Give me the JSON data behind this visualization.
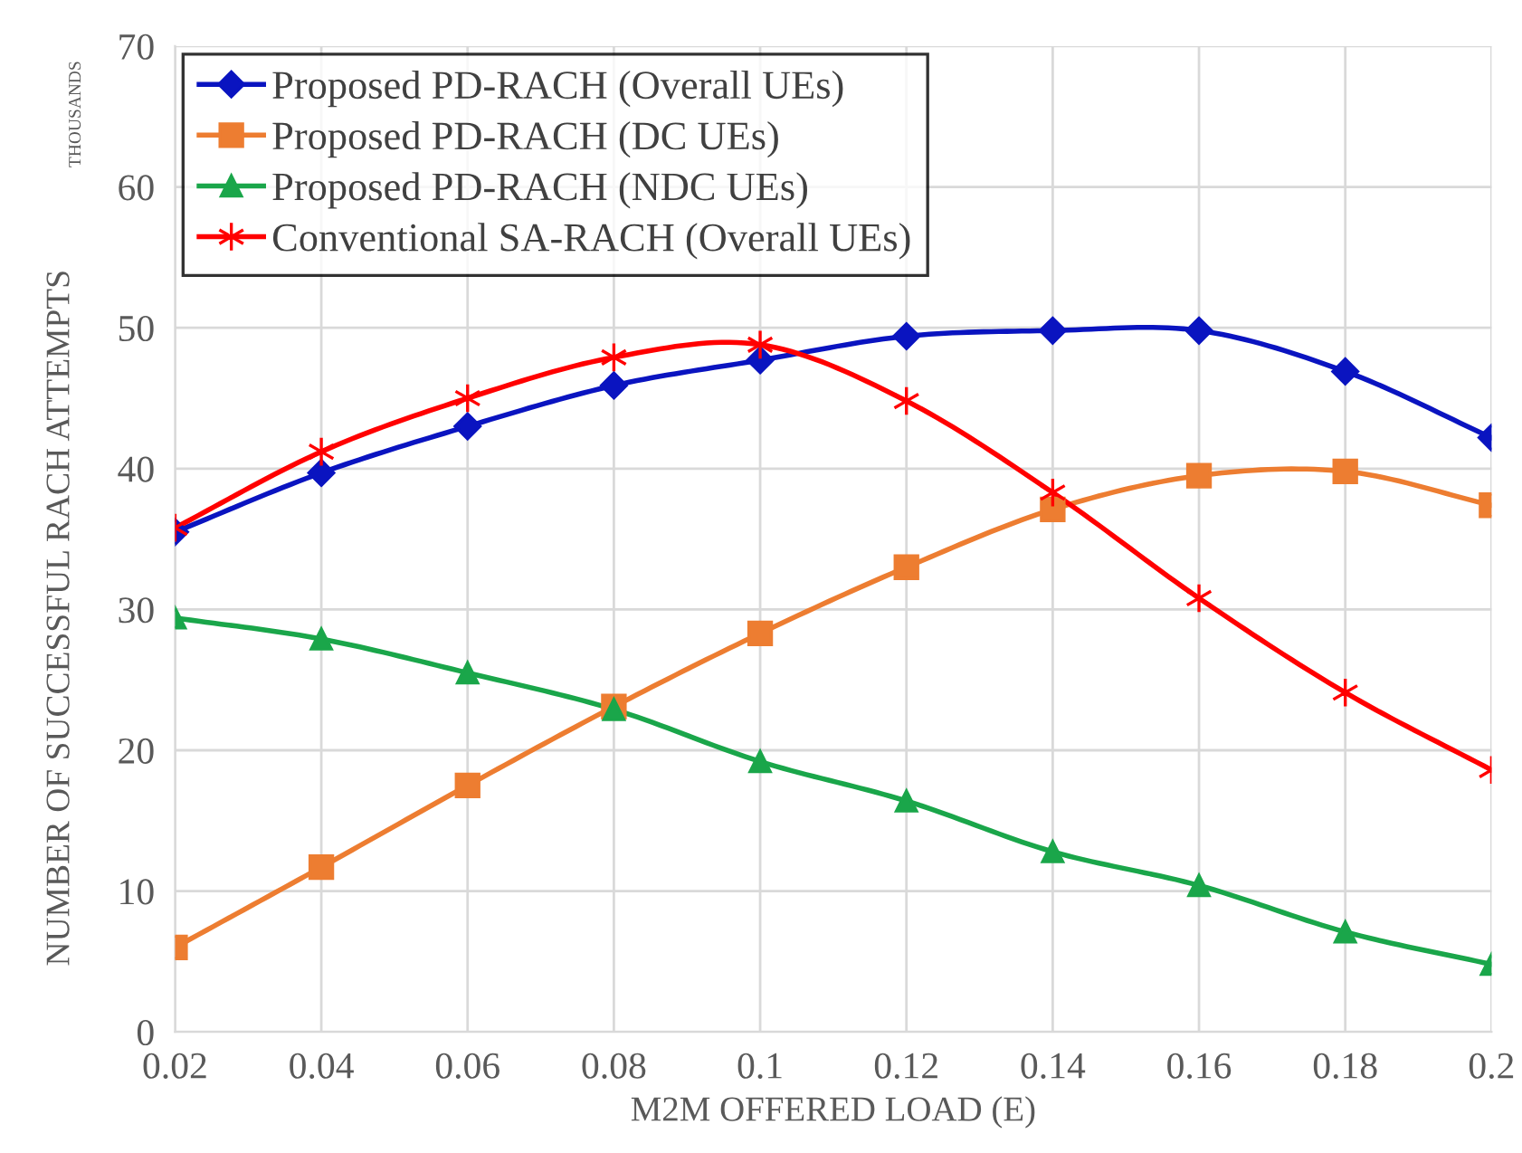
{
  "chart_data": {
    "type": "line",
    "xlabel": "M2M OFFERED LOAD (E)",
    "ylabel": "NUMBER OF SUCCESSFUL RACH ATTEMPTS",
    "annotations": [
      "THOUSANDS"
    ],
    "x": [
      0.02,
      0.04,
      0.06,
      0.08,
      0.1,
      0.12,
      0.14,
      0.16,
      0.18,
      0.2
    ],
    "xlim": [
      0.02,
      0.2
    ],
    "xticks": [
      0.02,
      0.04,
      0.06,
      0.08,
      0.1,
      0.12,
      0.14,
      0.16,
      0.18,
      0.2
    ],
    "ylim": [
      0,
      70
    ],
    "yticks": [
      0,
      10,
      20,
      30,
      40,
      50,
      60,
      70
    ],
    "grid": true,
    "legend": "top left",
    "line_style": "solid",
    "series": [
      {
        "name": "Proposed PD-RACH (Overall UEs)",
        "color": "#0a14c0",
        "marker": "diamond",
        "values": [
          35.5,
          39.7,
          43,
          45.9,
          47.7,
          49.4,
          49.8,
          49.8,
          46.9,
          42.2
        ]
      },
      {
        "name": "Proposed PD-RACH (DC UEs)",
        "color": "#ed7d31",
        "marker": "square",
        "values": [
          6,
          11.7,
          17.5,
          23.1,
          28.3,
          33,
          37.1,
          39.5,
          39.8,
          37.4
        ]
      },
      {
        "name": "Proposed PD-RACH (NDC UEs)",
        "color": "#1aa64a",
        "marker": "triangle",
        "values": [
          29.4,
          27.9,
          25.5,
          22.9,
          19.2,
          16.4,
          12.8,
          10.4,
          7.1,
          4.8
        ]
      },
      {
        "name": "Conventional SA-RACH (Overall UEs)",
        "color": "#ff0000",
        "marker": "cross",
        "values": [
          35.8,
          41.2,
          45,
          47.9,
          48.8,
          44.8,
          38.3,
          30.8,
          24.1,
          18.6
        ]
      }
    ]
  }
}
